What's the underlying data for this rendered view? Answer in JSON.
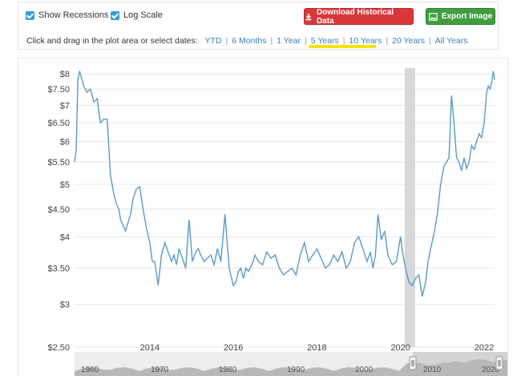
{
  "toolbar": {
    "show_recessions_label": "Show Recessions",
    "log_scale_label": "Log Scale",
    "download_label": "Download Historical Data",
    "export_label": "Export Image",
    "date_prompt": "Click and drag in the plot area or select dates:",
    "date_ranges": [
      "YTD",
      "6 Months",
      "1 Year",
      "5 Years",
      "10 Years",
      "20 Years",
      "All Years"
    ],
    "selected_range": "10 Years",
    "highlight_color": "#f5e400"
  },
  "chart_data": {
    "type": "line",
    "log_scale": true,
    "y_ticks": [
      2.5,
      3,
      3.5,
      4,
      4.5,
      5,
      5.5,
      6,
      6.5,
      7,
      7.5,
      8
    ],
    "y_tick_labels": [
      "$2.50",
      "$3",
      "$3.50",
      "$4",
      "$4.50",
      "$5",
      "$5.50",
      "$6",
      "$6.50",
      "$7",
      "$7.50",
      "$8"
    ],
    "x_tick_labels": [
      "2014",
      "2016",
      "2018",
      "2020",
      "2022"
    ],
    "xlim": [
      2012.2,
      2022.25
    ],
    "ylim": [
      2.5,
      8.2
    ],
    "grid": true,
    "line_color": "#5a9ac8",
    "recession_shading": [
      2020.1,
      2020.35
    ],
    "navigator_labels": [
      "1960",
      "1970",
      "1980",
      "1990",
      "2000",
      "2010",
      "2020"
    ],
    "series": [
      {
        "x": [
          2012.2,
          2012.24,
          2012.28,
          2012.32,
          2012.36,
          2012.42,
          2012.5,
          2012.58,
          2012.66,
          2012.74,
          2012.82,
          2012.9,
          2012.98,
          2013.06,
          2013.14,
          2013.2,
          2013.26,
          2013.3,
          2013.36,
          2013.42,
          2013.48,
          2013.54,
          2013.6,
          2013.68,
          2013.76,
          2013.84,
          2013.92,
          2014.0,
          2014.06,
          2014.12,
          2014.2,
          2014.28,
          2014.36,
          2014.44,
          2014.52,
          2014.58,
          2014.64,
          2014.7,
          2014.78,
          2014.86,
          2014.94,
          2015.02,
          2015.1,
          2015.16,
          2015.22,
          2015.3,
          2015.38,
          2015.46,
          2015.54,
          2015.62,
          2015.7,
          2015.8,
          2015.9,
          2016.0,
          2016.06,
          2016.12,
          2016.18,
          2016.24,
          2016.3,
          2016.36,
          2016.44,
          2016.52,
          2016.6,
          2016.7,
          2016.8,
          2016.9,
          2017.0,
          2017.1,
          2017.2,
          2017.3,
          2017.4,
          2017.5,
          2017.6,
          2017.7,
          2017.8,
          2017.9,
          2018.0,
          2018.1,
          2018.2,
          2018.3,
          2018.4,
          2018.5,
          2018.6,
          2018.7,
          2018.8,
          2018.9,
          2019.0,
          2019.1,
          2019.2,
          2019.28,
          2019.34,
          2019.4,
          2019.46,
          2019.54,
          2019.62,
          2019.7,
          2019.8,
          2019.9,
          2020.0,
          2020.06,
          2020.12,
          2020.2,
          2020.28,
          2020.36,
          2020.44,
          2020.52,
          2020.6,
          2020.66,
          2020.72,
          2020.8,
          2020.88,
          2020.96,
          2021.04,
          2021.1,
          2021.16,
          2021.22,
          2021.28,
          2021.34,
          2021.4,
          2021.46,
          2021.52,
          2021.58,
          2021.64,
          2021.7,
          2021.76,
          2021.82,
          2021.88,
          2021.94,
          2022.0,
          2022.06,
          2022.1,
          2022.14,
          2022.18,
          2022.22,
          2022.25
        ],
        "y": [
          5.5,
          5.8,
          7.8,
          8.1,
          7.9,
          7.6,
          7.4,
          7.5,
          7.1,
          7.2,
          6.5,
          6.6,
          6.6,
          5.2,
          4.8,
          4.6,
          4.5,
          4.3,
          4.2,
          4.1,
          4.25,
          4.4,
          4.7,
          4.9,
          4.95,
          4.5,
          4.15,
          3.9,
          3.6,
          3.6,
          3.25,
          3.7,
          3.9,
          3.75,
          3.6,
          3.7,
          3.55,
          3.8,
          3.65,
          3.5,
          4.3,
          3.6,
          3.75,
          3.8,
          3.7,
          3.6,
          3.65,
          3.7,
          3.55,
          3.8,
          3.6,
          4.4,
          3.5,
          3.25,
          3.3,
          3.45,
          3.5,
          3.35,
          3.5,
          3.45,
          3.55,
          3.7,
          3.6,
          3.55,
          3.75,
          3.65,
          3.7,
          3.5,
          3.4,
          3.45,
          3.5,
          3.4,
          3.7,
          3.9,
          3.6,
          3.7,
          3.8,
          3.65,
          3.5,
          3.55,
          3.7,
          3.6,
          3.75,
          3.5,
          3.6,
          3.9,
          4.0,
          3.8,
          3.6,
          3.75,
          3.5,
          3.7,
          4.4,
          3.95,
          4.1,
          3.7,
          3.55,
          3.6,
          4.0,
          3.7,
          3.5,
          3.3,
          3.25,
          3.35,
          3.4,
          3.1,
          3.3,
          3.6,
          3.8,
          4.05,
          4.4,
          5.0,
          5.4,
          5.5,
          5.6,
          7.3,
          6.5,
          5.6,
          5.5,
          5.3,
          5.6,
          5.35,
          5.5,
          5.9,
          5.8,
          6.0,
          6.2,
          6.1,
          6.5,
          7.4,
          7.6,
          7.5,
          7.7,
          8.1,
          7.8
        ]
      }
    ]
  }
}
